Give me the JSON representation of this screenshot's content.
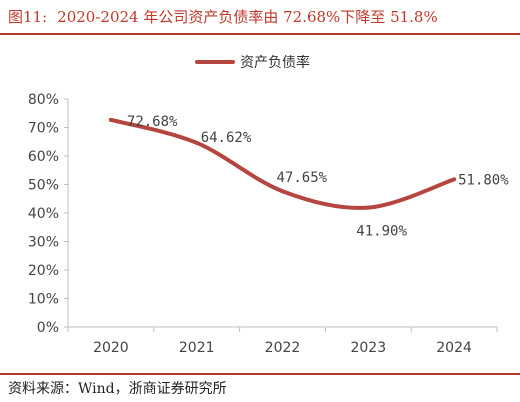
{
  "title": {
    "label": "图11:",
    "text": "2020-2024 年公司资产负债率由 72.68%下降至 51.8%"
  },
  "source": "资料来源：Wind，浙商证券研究所",
  "colors": {
    "accent": "#b03a2e",
    "line": "#b5453f"
  },
  "chart_data": {
    "type": "line",
    "categories": [
      "2020",
      "2021",
      "2022",
      "2023",
      "2024"
    ],
    "series": [
      {
        "name": "资产负债率",
        "values": [
          72.68,
          64.62,
          47.65,
          41.9,
          51.8
        ]
      }
    ],
    "data_labels": [
      "72.68%",
      "64.62%",
      "47.65%",
      "41.90%",
      "51.80%"
    ],
    "ytick_labels": [
      "0%",
      "10%",
      "20%",
      "30%",
      "40%",
      "50%",
      "60%",
      "70%",
      "80%"
    ],
    "ylim": [
      0,
      80
    ],
    "grid": false,
    "legend": "top-center",
    "smooth": true
  }
}
